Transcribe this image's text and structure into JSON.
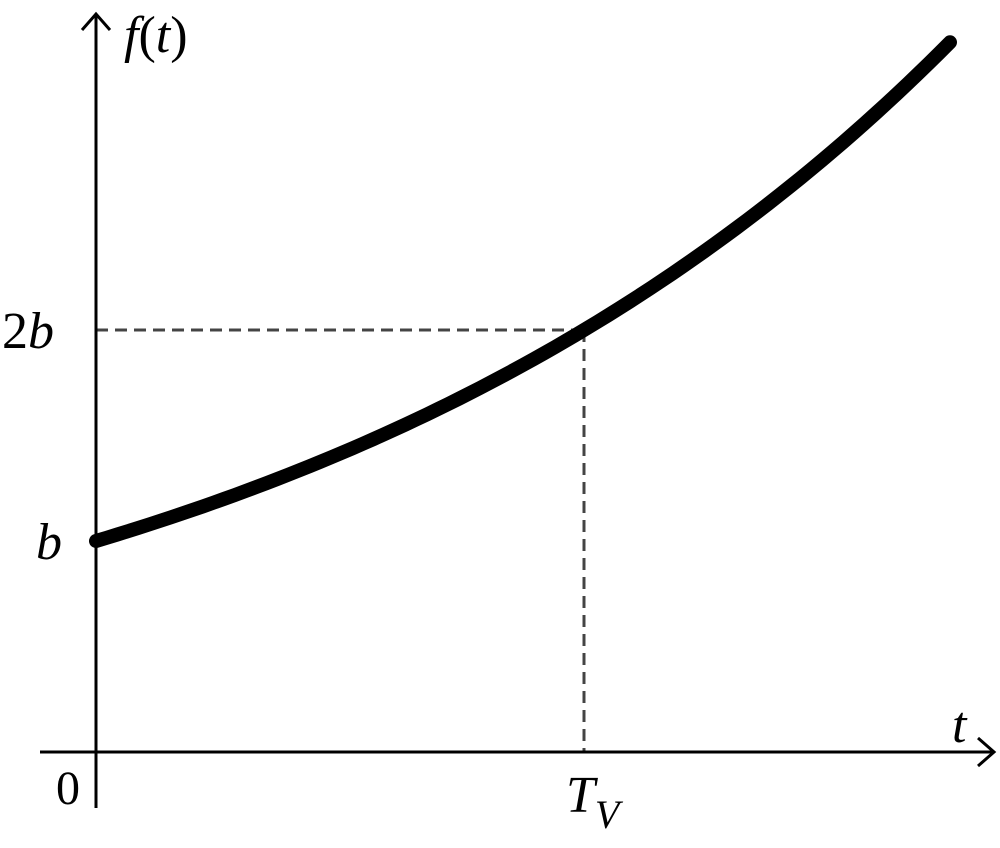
{
  "chart_data": {
    "type": "line",
    "title": "",
    "xlabel": "t",
    "ylabel": "f(t)",
    "ylabel_parts": {
      "fn": "f",
      "open": "(",
      "var": "t",
      "close": ")"
    },
    "x_ticks": [
      {
        "label": "0",
        "value": 0
      },
      {
        "label_main": "T",
        "label_sub": "V",
        "value": 1
      }
    ],
    "y_ticks": [
      {
        "label": "b",
        "value": 1
      },
      {
        "label_main": "2",
        "label_italic": "b",
        "value": 2
      }
    ],
    "xlim": [
      0,
      1.75
    ],
    "ylim": [
      0,
      3.92
    ],
    "series": [
      {
        "values_x": [
          0,
          0.25,
          0.5,
          0.75,
          1.0,
          1.25,
          1.5,
          1.75
        ],
        "values_y": [
          1.0,
          1.189,
          1.414,
          1.682,
          2.0,
          2.378,
          2.828,
          3.364
        ]
      }
    ],
    "reference_lines": [
      {
        "x": 1,
        "y": 2,
        "style": "dashed"
      }
    ],
    "grid": false,
    "colors": {
      "curve": "#000000",
      "axes": "#000000",
      "dashed": "#444444"
    }
  }
}
